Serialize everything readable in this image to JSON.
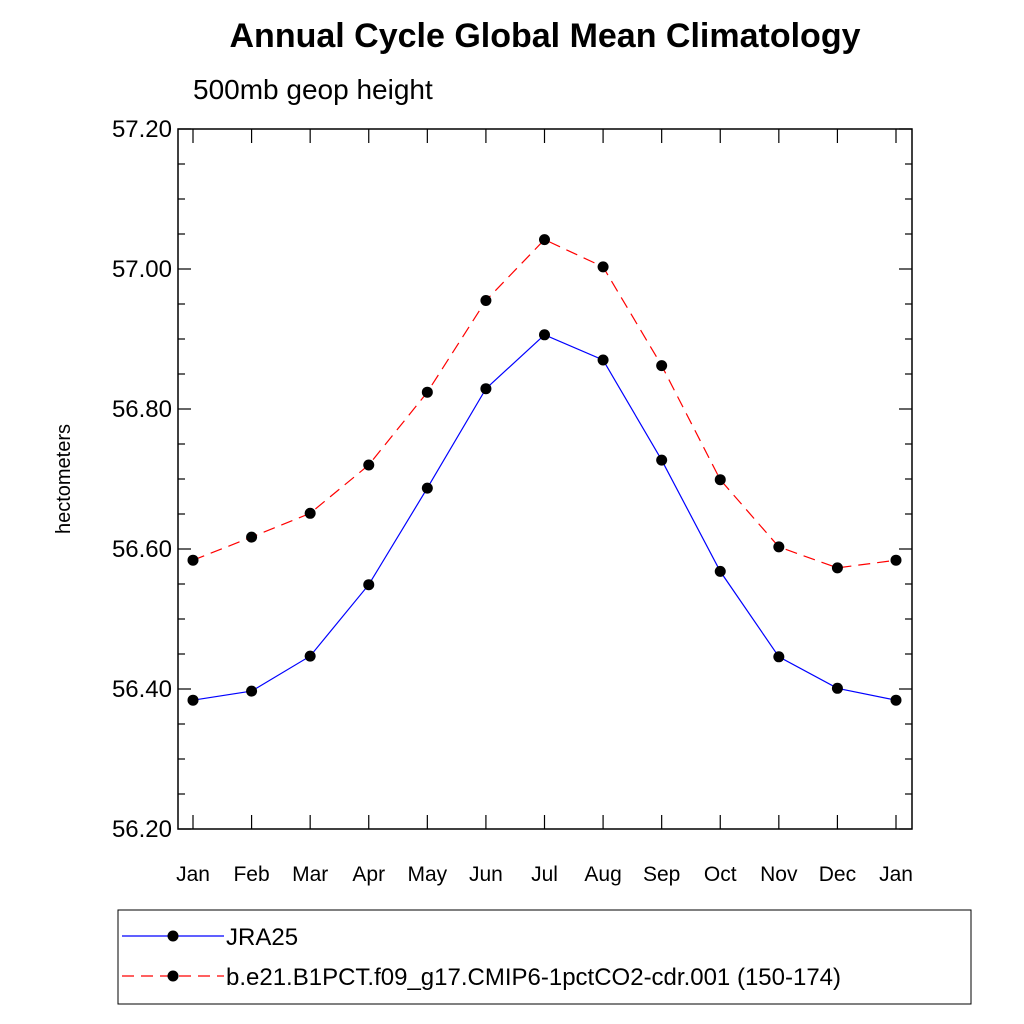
{
  "chart_data": {
    "type": "line",
    "title": "Annual Cycle Global Mean Climatology",
    "subtitle": "500mb geop height",
    "ylabel": "hectometers",
    "xlabel": "",
    "categories": [
      "Jan",
      "Feb",
      "Mar",
      "Apr",
      "May",
      "Jun",
      "Jul",
      "Aug",
      "Sep",
      "Oct",
      "Nov",
      "Dec",
      "Jan"
    ],
    "ylim": [
      56.2,
      57.2
    ],
    "yticks": [
      "56.20",
      "56.40",
      "56.60",
      "56.80",
      "57.00",
      "57.20"
    ],
    "legend_position": "bottom",
    "grid": false,
    "series": [
      {
        "name": "JRA25",
        "color": "#0000ff",
        "dash": "solid",
        "marker": "filled-circle",
        "values": [
          56.384,
          56.397,
          56.447,
          56.549,
          56.687,
          56.829,
          56.906,
          56.87,
          56.727,
          56.568,
          56.446,
          56.401,
          56.384
        ]
      },
      {
        "name": "b.e21.B1PCT.f09_g17.CMIP6-1pctCO2-cdr.001 (150-174)",
        "color": "#ff0000",
        "dash": "dashed",
        "marker": "filled-circle",
        "values": [
          56.584,
          56.617,
          56.651,
          56.72,
          56.824,
          56.955,
          57.042,
          57.003,
          56.862,
          56.699,
          56.603,
          56.573,
          56.584
        ]
      }
    ]
  }
}
